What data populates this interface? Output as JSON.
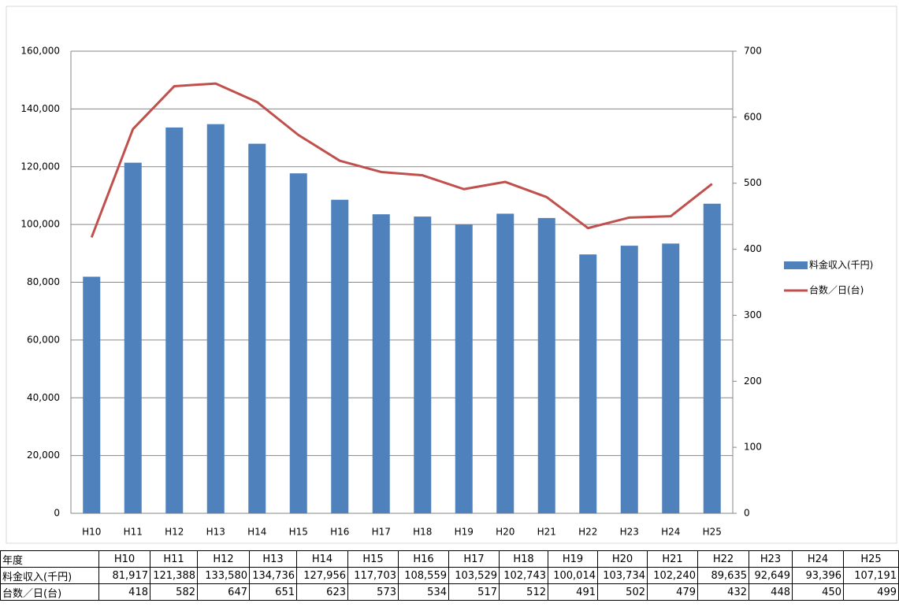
{
  "chart_data": {
    "type": "bar",
    "categories": [
      "H10",
      "H11",
      "H12",
      "H13",
      "H14",
      "H15",
      "H16",
      "H17",
      "H18",
      "H19",
      "H20",
      "H21",
      "H22",
      "H23",
      "H24",
      "H25"
    ],
    "series": [
      {
        "name": "料金収入(千円)",
        "color": "#4f81bd",
        "values": [
          81917,
          121388,
          133580,
          134736,
          127956,
          117703,
          108559,
          103529,
          102743,
          100014,
          103734,
          102240,
          89635,
          92649,
          93396,
          107191
        ]
      },
      {
        "name": "台数／日(台)",
        "color": "#c0504d",
        "type": "line",
        "axis": "y2",
        "values": [
          418,
          582,
          647,
          651,
          623,
          573,
          534,
          517,
          512,
          491,
          502,
          479,
          432,
          448,
          450,
          499
        ]
      }
    ],
    "ylim": [
      0,
      160000
    ],
    "yticks": [
      0,
      {
        "value": 20000,
        "label": "20,000"
      },
      {
        "value": 40000,
        "label": "40,000"
      },
      {
        "value": 60000,
        "label": "60,000"
      },
      {
        "value": 80000,
        "label": "80,000"
      },
      {
        "value": 100000,
        "label": "100,000"
      },
      {
        "value": 120000,
        "label": "120,000"
      },
      {
        "value": 140000,
        "label": "140,000"
      },
      {
        "value": 160000,
        "label": "160,000"
      }
    ],
    "y2lim": [
      0,
      700
    ],
    "y2ticks": [
      0,
      100,
      200,
      300,
      400,
      500,
      600,
      700
    ],
    "grid": true,
    "legend": "right"
  },
  "table": {
    "header": [
      "年度",
      "H10",
      "H11",
      "H12",
      "H13",
      "H14",
      "H15",
      "H16",
      "H17",
      "H18",
      "H19",
      "H20",
      "H21",
      "H22",
      "H23",
      "H24",
      "H25"
    ],
    "rows": [
      [
        "料金収入(千円)",
        "81,917",
        "121,388",
        "133,580",
        "134,736",
        "127,956",
        "117,703",
        "108,559",
        "103,529",
        "102,743",
        "100,014",
        "103,734",
        "102,240",
        "89,635",
        "92,649",
        "93,396",
        "107,191"
      ],
      [
        "台数／日(台)",
        "418",
        "582",
        "647",
        "651",
        "623",
        "573",
        "534",
        "517",
        "512",
        "491",
        "502",
        "479",
        "432",
        "448",
        "450",
        "499"
      ]
    ]
  }
}
